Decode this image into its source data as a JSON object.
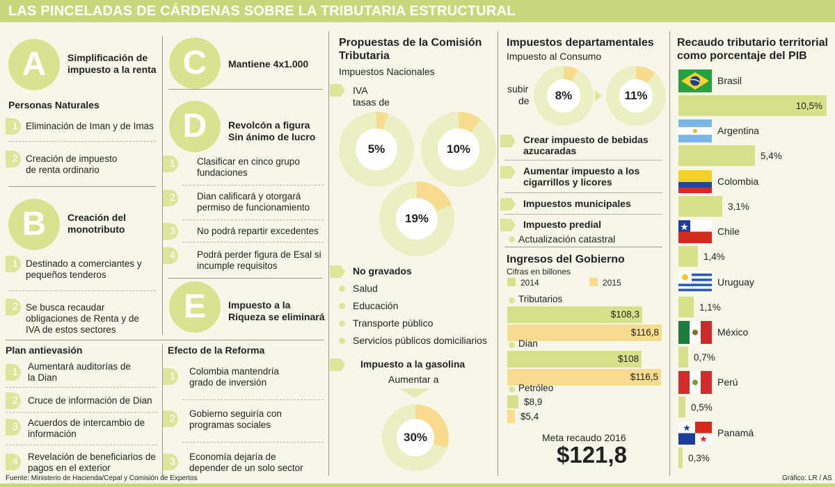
{
  "title": "LAS PINCELADAS DE CÁRDENAS SOBRE LA TRIBUTARIA ESTRUCTURAL",
  "colA": {
    "A": {
      "letter": "A",
      "title": "Simplificación de impuesto a la renta"
    },
    "personas": "Personas Naturales",
    "a_items": [
      {
        "n": "1",
        "text": "Eliminación de Iman y de Imas"
      },
      {
        "n": "2",
        "text": "Creación de impuesto de renta ordinario"
      }
    ],
    "B": {
      "letter": "B",
      "title": "Creación del monotributo"
    },
    "b_items": [
      {
        "n": "1",
        "text": "Destinado a comerciantes y pequeños tenderos"
      },
      {
        "n": "2",
        "text": "Se busca recaudar obligaciones de Renta y de IVA de estos sectores"
      }
    ],
    "plan_title": "Plan antievasión",
    "plan_items": [
      {
        "n": "1",
        "text": "Aumentará auditorías de la Dian"
      },
      {
        "n": "2",
        "text": "Cruce de información de Dian"
      },
      {
        "n": "3",
        "text": "Acuerdos de intercambio de información"
      },
      {
        "n": "4",
        "text": "Revelación de beneficiarios de pagos en el exterior"
      }
    ]
  },
  "colB": {
    "C": {
      "letter": "C",
      "title": "Mantiene 4x1.000"
    },
    "D": {
      "letter": "D",
      "title": "Revolcón a figura Sin ánimo de lucro"
    },
    "d_items": [
      {
        "n": "1",
        "text": "Clasificar en cinco grupo fundaciones"
      },
      {
        "n": "2",
        "text": "Dian calificará y otorgará permiso de funcionamiento"
      },
      {
        "n": "3",
        "text": "No podrá repartir excedentes"
      },
      {
        "n": "4",
        "text": "Podrá perder figura de Esal si incumple requisitos"
      }
    ],
    "E": {
      "letter": "E",
      "title": "Impuesto a la Riqueza se eliminará"
    },
    "efecto_title": "Efecto de la Reforma",
    "efecto_items": [
      {
        "n": "1",
        "text": "Colombia mantendría grado de inversión"
      },
      {
        "n": "2",
        "text": "Gobierno seguiría con programas sociales"
      },
      {
        "n": "3",
        "text": "Economía dejaría de depender de un solo sector"
      }
    ]
  },
  "colC": {
    "title": "Propuestas de la Comisión Tributaria",
    "nacionales": "Impuestos Nacionales",
    "iva": "IVA",
    "tasas": "tasas de",
    "rates": [
      {
        "label": "5%",
        "fraction": 0.05
      },
      {
        "label": "10%",
        "fraction": 0.1
      },
      {
        "label": "19%",
        "fraction": 0.19
      }
    ],
    "no_gravados": "No gravados",
    "no_gravados_items": [
      "Salud",
      "Educación",
      "Transporte público",
      "Servicios públicos domiciliarios"
    ],
    "gasolina": "Impuesto a la gasolina",
    "aumentar": "Aumentar a",
    "gas_rate": {
      "label": "30%",
      "fraction": 0.3
    }
  },
  "colD": {
    "title": "Impuestos departamentales",
    "consumo": "Impuesto al Consumo",
    "subir": "subir",
    "de": "de",
    "rates": [
      {
        "label": "8%",
        "fraction": 0.08
      },
      {
        "label": "11%",
        "fraction": 0.11
      }
    ],
    "items": [
      "Crear impuesto de bebidas azucaradas",
      "Aumentar impuesto a los cigarrillos y licores",
      "Impuestos municipales",
      "Impuesto predial"
    ],
    "catastral": "Actualización catastral",
    "ingresos_title": "Ingresos del Gobierno",
    "cifras": "Cifras en billones",
    "legend_2014": "2014",
    "legend_2015": "2015",
    "meta": "Meta recaudo 2016",
    "meta_value": "$121,8"
  },
  "chart_data": [
    {
      "type": "bar",
      "title": "Ingresos del Gobierno",
      "subtitle": "Cifras en billones",
      "categories": [
        "Tributarios",
        "Dian",
        "Petróleo"
      ],
      "series": [
        {
          "name": "2014",
          "values": [
            108.3,
            108,
            8.9
          ],
          "labels": [
            "$108,3",
            "$108",
            "$8,9"
          ],
          "color": "#d6e18a"
        },
        {
          "name": "2015",
          "values": [
            116.8,
            116.5,
            5.4
          ],
          "labels": [
            "$116,8",
            "$116,5",
            "$5,4"
          ],
          "color": "#f6dc8c"
        }
      ]
    },
    {
      "type": "bar",
      "title": "Recaudo tributario territorial como porcentaje del PIB",
      "categories": [
        "Brasil",
        "Argentina",
        "Colombia",
        "Chile",
        "Uruguay",
        "México",
        "Perú",
        "Panamá"
      ],
      "values": [
        10.5,
        5.4,
        3.1,
        1.4,
        1.1,
        0.7,
        0.5,
        0.3
      ],
      "labels": [
        "10,5%",
        "5,4%",
        "3,1%",
        "1,4%",
        "1,1%",
        "0,7%",
        "0,5%",
        "0,3%"
      ]
    }
  ],
  "colE": {
    "title": "Recaudo tributario territorial como porcentaje del PIB"
  },
  "footer": {
    "source": "Fuente: Ministerio de Hacienda/Cepal y Comisión de Expertos",
    "credit": "Gráfico: LR / AS"
  },
  "colors": {
    "green": "#d6e18a",
    "yellow": "#f6dc8c",
    "bar": "#c8d77a",
    "ring": "#ebefc4"
  }
}
